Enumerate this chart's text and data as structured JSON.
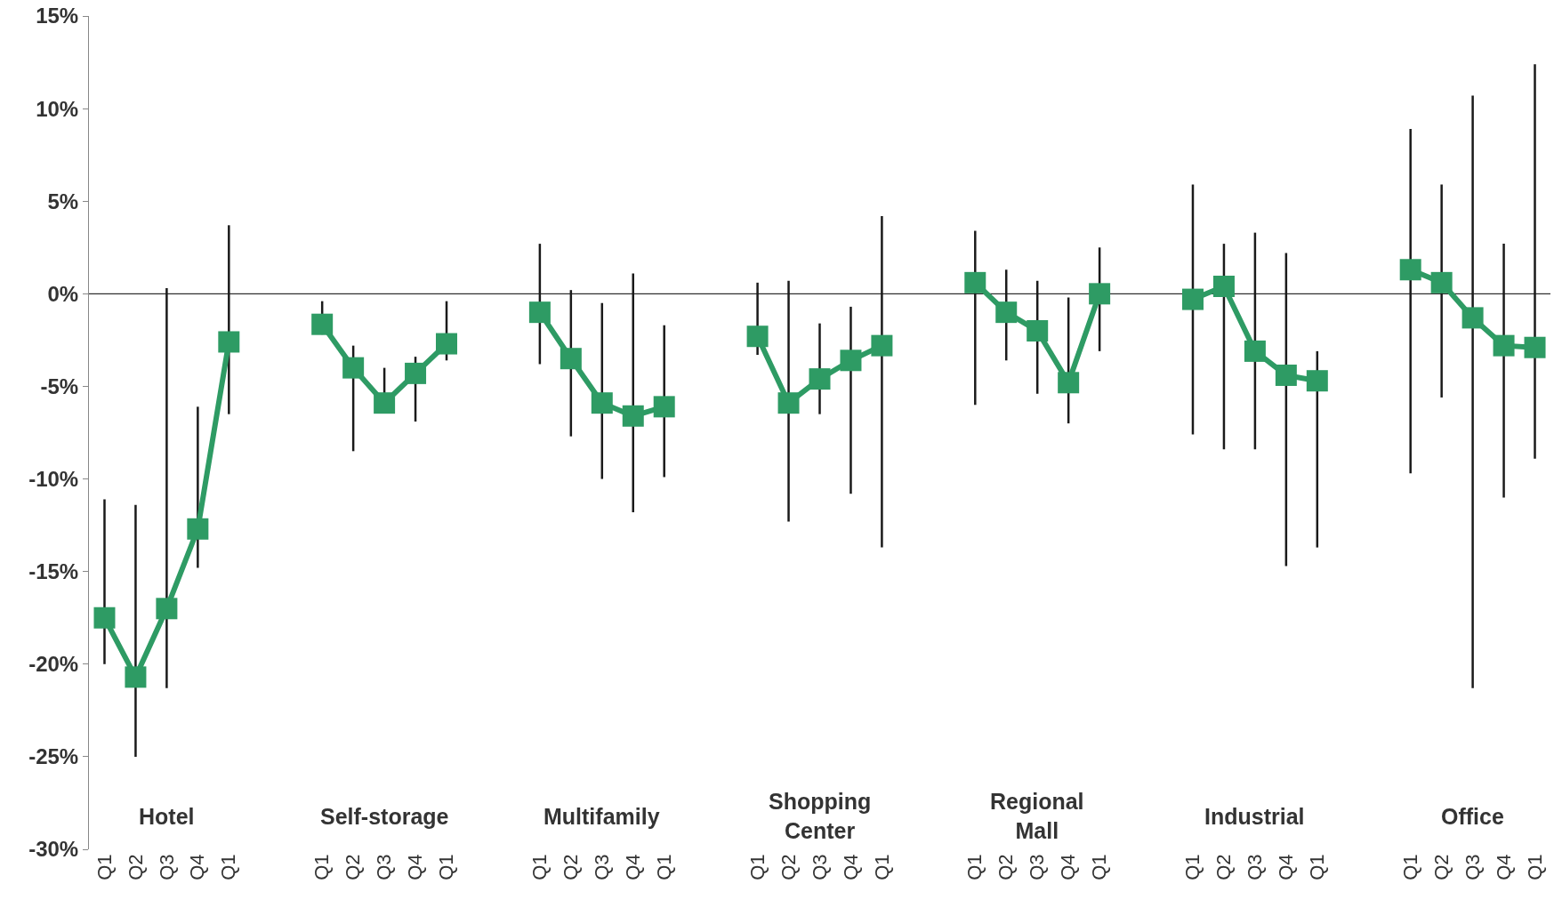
{
  "chart_data": {
    "type": "line",
    "categories": [
      "Q1",
      "Q2",
      "Q3",
      "Q4",
      "Q1",
      null,
      null,
      "Q1",
      "Q2",
      "Q3",
      "Q4",
      "Q1",
      null,
      null,
      "Q1",
      "Q2",
      "Q3",
      "Q4",
      "Q1",
      null,
      null,
      "Q1",
      "Q2",
      "Q3",
      "Q4",
      "Q1",
      null,
      null,
      "Q1",
      "Q2",
      "Q3",
      "Q4",
      "Q1",
      null,
      null,
      "Q1",
      "Q2",
      "Q3",
      "Q4",
      "Q1",
      null,
      null,
      "Q1",
      "Q2",
      "Q3",
      "Q4",
      "Q1"
    ],
    "series": [
      {
        "color": "#2e9b64",
        "values": [
          -17.5,
          -20.7,
          -17.0,
          -12.7,
          -2.6,
          null,
          null,
          -1.65,
          -4.0,
          -5.9,
          -4.3,
          -2.7,
          null,
          null,
          -1.0,
          -3.5,
          -5.9,
          -6.6,
          -6.1,
          null,
          null,
          -2.3,
          -5.9,
          -4.6,
          -3.6,
          -2.8,
          null,
          null,
          0.6,
          -1.0,
          -2.0,
          -4.8,
          0.0,
          null,
          null,
          -0.3,
          0.4,
          -3.1,
          -4.4,
          -4.7,
          null,
          null,
          1.3,
          0.6,
          -1.3,
          -2.8,
          -2.9
        ],
        "errors": [
          [
            -20.0,
            -11.1
          ],
          [
            -25.0,
            -11.4
          ],
          [
            -21.3,
            0.3
          ],
          [
            -14.8,
            -6.1
          ],
          [
            -6.5,
            3.7
          ],
          null,
          null,
          [
            -2.2,
            -0.4
          ],
          [
            -8.5,
            -2.8
          ],
          [
            -5.9,
            -4.0
          ],
          [
            -6.9,
            -3.4
          ],
          [
            -3.6,
            -0.4
          ],
          null,
          null,
          [
            -3.8,
            2.7
          ],
          [
            -7.7,
            0.2
          ],
          [
            -10.0,
            -0.5
          ],
          [
            -11.8,
            1.1
          ],
          [
            -9.9,
            -1.7
          ],
          null,
          null,
          [
            -3.3,
            0.6
          ],
          [
            -12.3,
            0.7
          ],
          [
            -6.5,
            -1.6
          ],
          [
            -10.8,
            -0.7
          ],
          [
            -13.7,
            4.2
          ],
          null,
          null,
          [
            -6.0,
            3.4
          ],
          [
            -3.6,
            1.3
          ],
          [
            -5.4,
            0.7
          ],
          [
            -7.0,
            -0.2
          ],
          [
            -3.1,
            2.5
          ],
          null,
          null,
          [
            -7.6,
            5.9
          ],
          [
            -8.4,
            2.7
          ],
          [
            -8.4,
            3.3
          ],
          [
            -14.7,
            2.2
          ],
          [
            -13.7,
            -3.1
          ],
          null,
          null,
          [
            -9.7,
            8.9
          ],
          [
            -5.6,
            5.9
          ],
          [
            -21.3,
            10.7
          ],
          [
            -11.0,
            2.7
          ],
          [
            -8.9,
            12.4
          ]
        ]
      }
    ],
    "ylim": [
      -30,
      15
    ],
    "yticks": [
      {
        "value": -30,
        "label": "-30%"
      },
      {
        "value": -25,
        "label": "-25%"
      },
      {
        "value": -20,
        "label": "-20%"
      },
      {
        "value": -15,
        "label": "-15%"
      },
      {
        "value": -10,
        "label": "-10%"
      },
      {
        "value": -5,
        "label": "-5%"
      },
      {
        "value": 0,
        "label": "0%"
      },
      {
        "value": 5,
        "label": "5%"
      },
      {
        "value": 10,
        "label": "10%"
      },
      {
        "value": 15,
        "label": "15%"
      }
    ],
    "ref_lines": [
      {
        "axis": "y",
        "value": 0,
        "color": "#000000"
      }
    ],
    "annotations": [
      "Hotel",
      "Self-storage",
      "Multifamily",
      "Shopping\nCenter",
      "Regional\nMall",
      "Industrial",
      "Office"
    ],
    "marker": "square",
    "line_style": "solid",
    "grid": false
  }
}
